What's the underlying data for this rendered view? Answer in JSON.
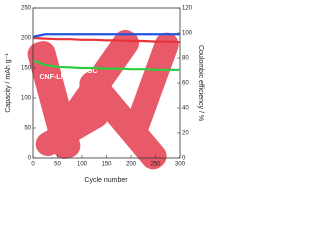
{
  "chart_data": {
    "type": "line",
    "x_label": "Cycle number",
    "y_label": "Capacity / mAh g⁻¹",
    "y2_label": "Coulombic efficiency / %",
    "x": [
      1,
      25,
      50,
      75,
      100,
      125,
      150,
      175,
      200,
      225,
      250,
      275,
      300
    ],
    "series": [
      {
        "name": "NGC",
        "color": "#e8333a",
        "values": [
          200,
          199,
          198,
          198,
          197,
          197,
          196,
          196,
          195,
          195,
          194,
          194,
          193
        ]
      },
      {
        "name": "CNF-LMNO",
        "color": "#2ecc40",
        "values": [
          162,
          155,
          152,
          151,
          150,
          150,
          149,
          149,
          148,
          148,
          147,
          147,
          147
        ]
      },
      {
        "color": "#2255dd",
        "axis": "y2",
        "values": [
          97,
          99,
          99,
          99,
          99,
          99,
          99,
          99,
          99,
          99,
          99,
          99,
          99
        ]
      }
    ],
    "xlim": [
      0,
      300
    ],
    "xticks": [
      0,
      50,
      100,
      150,
      200,
      250,
      300
    ],
    "ylim": [
      0,
      250
    ],
    "yticks": [
      0,
      50,
      100,
      150,
      200,
      250
    ],
    "y2lim": [
      0,
      120
    ],
    "y2ticks": [
      0,
      20,
      40,
      60,
      80,
      100,
      120
    ]
  }
}
